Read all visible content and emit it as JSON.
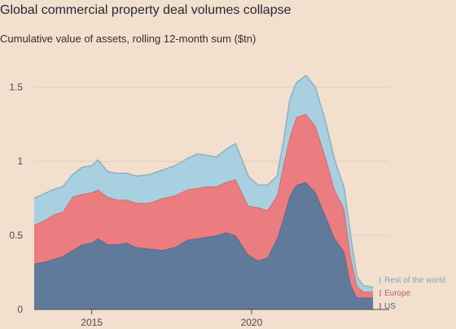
{
  "chart_data": {
    "type": "area",
    "stacked": true,
    "title": "Global commercial property deal volumes collapse",
    "subtitle": "Cumulative value of assets, rolling 12-month sum ($tn)",
    "xlabel": "",
    "ylabel": "",
    "xlim": [
      2013.2,
      2023.9
    ],
    "ylim": [
      0,
      1.6
    ],
    "yticks": [
      0,
      0.5,
      1,
      1.5
    ],
    "ytick_labels": [
      "0",
      "0.5",
      "1",
      "1.5"
    ],
    "xticks": [
      2015,
      2020
    ],
    "xtick_labels": [
      "2015",
      "2020"
    ],
    "grid": "horizontal",
    "legend_placement": "bottom-right",
    "x": [
      2013.2,
      2013.5,
      2013.8,
      2014.1,
      2014.4,
      2014.7,
      2015.0,
      2015.2,
      2015.5,
      2015.8,
      2016.1,
      2016.4,
      2016.8,
      2017.2,
      2017.6,
      2018.0,
      2018.3,
      2018.6,
      2018.9,
      2019.2,
      2019.5,
      2019.9,
      2020.2,
      2020.5,
      2020.8,
      2021.0,
      2021.2,
      2021.4,
      2021.7,
      2022.0,
      2022.3,
      2022.6,
      2022.9,
      2023.1,
      2023.3,
      2023.5,
      2023.8
    ],
    "series": [
      {
        "name": "US",
        "color": "#607a9c",
        "values": [
          0.31,
          0.32,
          0.34,
          0.36,
          0.4,
          0.44,
          0.45,
          0.48,
          0.44,
          0.44,
          0.45,
          0.42,
          0.41,
          0.4,
          0.42,
          0.47,
          0.48,
          0.49,
          0.5,
          0.52,
          0.5,
          0.37,
          0.33,
          0.35,
          0.48,
          0.62,
          0.77,
          0.84,
          0.86,
          0.79,
          0.64,
          0.48,
          0.39,
          0.17,
          0.08,
          0.08,
          0.08
        ]
      },
      {
        "name": "Europe",
        "color": "#eb7c7f",
        "values": [
          0.26,
          0.28,
          0.3,
          0.3,
          0.36,
          0.34,
          0.34,
          0.33,
          0.32,
          0.3,
          0.29,
          0.3,
          0.31,
          0.35,
          0.35,
          0.34,
          0.34,
          0.34,
          0.33,
          0.34,
          0.38,
          0.33,
          0.36,
          0.32,
          0.29,
          0.36,
          0.4,
          0.46,
          0.46,
          0.45,
          0.4,
          0.33,
          0.29,
          0.19,
          0.08,
          0.04,
          0.04
        ]
      },
      {
        "name": "Rest of the world",
        "color": "#a8d0e1",
        "values": [
          0.18,
          0.18,
          0.17,
          0.17,
          0.15,
          0.18,
          0.18,
          0.2,
          0.17,
          0.18,
          0.18,
          0.18,
          0.19,
          0.19,
          0.2,
          0.21,
          0.23,
          0.21,
          0.2,
          0.22,
          0.24,
          0.2,
          0.15,
          0.17,
          0.13,
          0.16,
          0.25,
          0.23,
          0.26,
          0.26,
          0.24,
          0.2,
          0.14,
          0.14,
          0.06,
          0.04,
          0.03
        ]
      }
    ]
  },
  "axis_color": "#4f4a46",
  "grid_color": "#e0cdbd",
  "background": "#f2dfce"
}
